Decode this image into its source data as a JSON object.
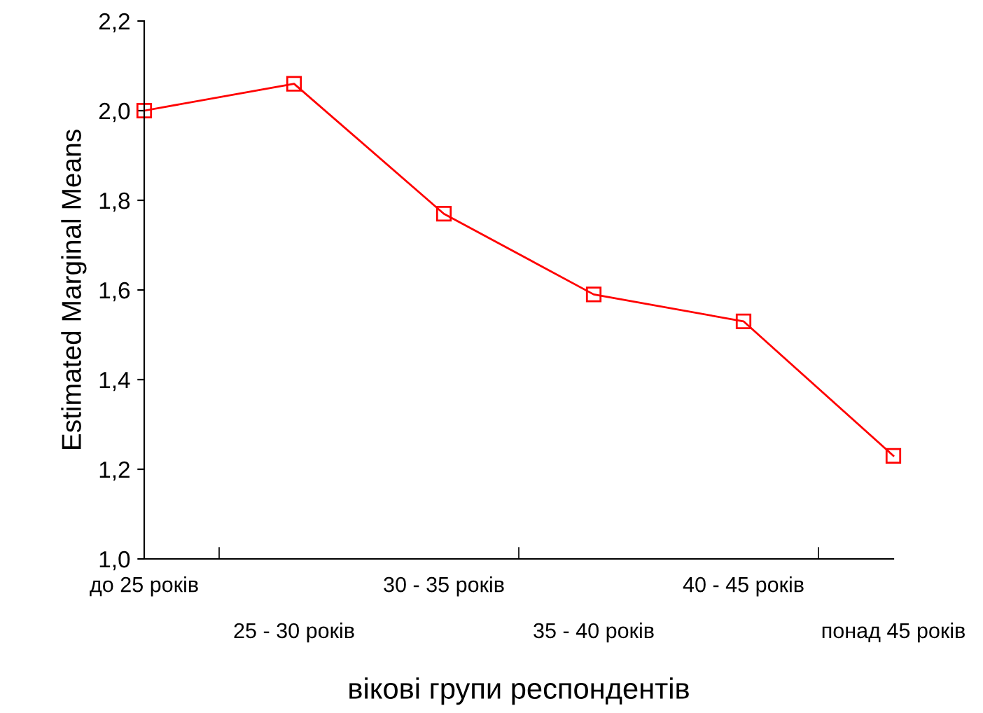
{
  "chart_data": {
    "type": "line",
    "xlabel": "вікові групи респондентів",
    "ylabel": "Estimated Marginal Means",
    "categories": [
      "до 25 років",
      "25 - 30 років",
      "30 - 35 років",
      "35 - 40 років",
      "40 - 45 років",
      "понад 45 років"
    ],
    "series": [
      {
        "color": "#ff0000",
        "values": [
          2.0,
          2.06,
          1.77,
          1.59,
          1.53,
          1.23
        ]
      }
    ],
    "ylim": [
      1.0,
      2.2
    ],
    "yticks": [
      {
        "value": 1.0,
        "label": "1,0"
      },
      {
        "value": 1.2,
        "label": "1,2"
      },
      {
        "value": 1.4,
        "label": "1,4"
      },
      {
        "value": 1.6,
        "label": "1,6"
      },
      {
        "value": 1.8,
        "label": "1,8"
      },
      {
        "value": 2.0,
        "label": "2,0"
      },
      {
        "value": 2.2,
        "label": "2,2"
      }
    ],
    "grid": false,
    "marker": "square",
    "line_style": "solid"
  }
}
